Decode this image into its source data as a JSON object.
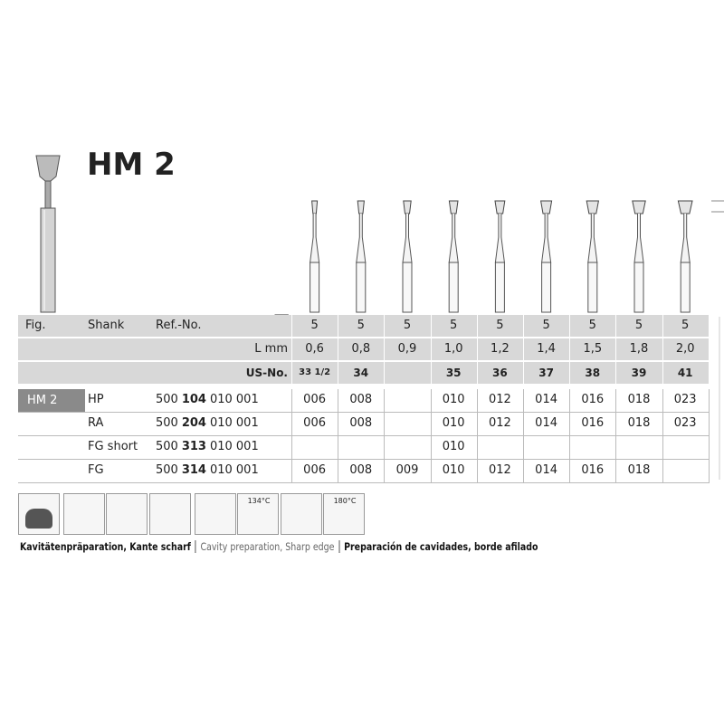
{
  "title": "HM 2",
  "table": {
    "header": [
      "Fig.",
      "Shank",
      "Ref.-No."
    ],
    "pack_sizes": [
      "5",
      "5",
      "5",
      "5",
      "5",
      "5",
      "5",
      "5",
      "5"
    ],
    "length_label": "L mm",
    "lengths": [
      "0,6",
      "0,8",
      "0,9",
      "1,0",
      "1,2",
      "1,4",
      "1,5",
      "1,8",
      "2,0"
    ],
    "us_label": "US-No.",
    "us_numbers": [
      "33 1/2",
      "34",
      null,
      "35",
      "36",
      "37",
      "38",
      "39",
      "41"
    ],
    "product": "HM 2",
    "rows": [
      {
        "shank": "HP",
        "ref": [
          "500",
          "104",
          "010 001"
        ],
        "sizes": [
          "006",
          "008",
          null,
          "010",
          "012",
          "014",
          "016",
          "018",
          "023"
        ]
      },
      {
        "shank": "RA",
        "ref": [
          "500",
          "204",
          "010 001"
        ],
        "sizes": [
          "006",
          "008",
          null,
          "010",
          "012",
          "014",
          "016",
          "018",
          "023"
        ]
      },
      {
        "shank": "FG short",
        "ref": [
          "500",
          "313",
          "010 001"
        ],
        "sizes": [
          null,
          null,
          null,
          "010",
          null,
          null,
          null,
          null,
          null
        ]
      },
      {
        "shank": "FG",
        "ref": [
          "500",
          "314",
          "010 001"
        ],
        "sizes": [
          "006",
          "008",
          "009",
          "010",
          "012",
          "014",
          "016",
          "018",
          null
        ]
      }
    ]
  },
  "icons": {
    "sterilize": "134°C",
    "heat": "180°C"
  },
  "caption": [
    "Kavitätenpräparation, Kante scharf",
    "Cavity preparation, Sharp edge",
    "Preparación de cavidades, borde afilado"
  ]
}
